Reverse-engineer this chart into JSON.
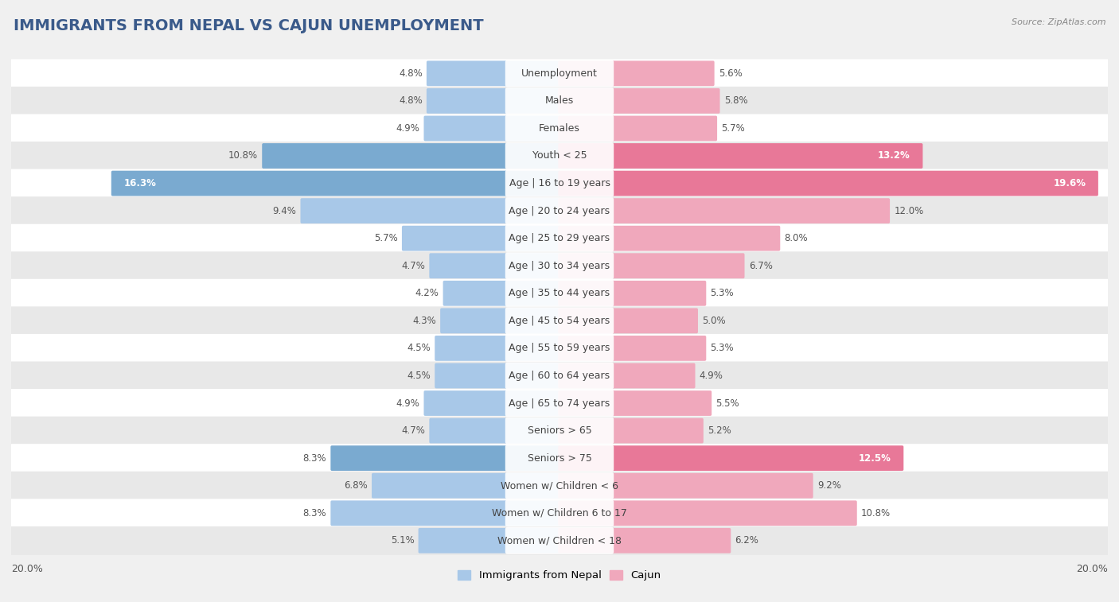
{
  "title": "IMMIGRANTS FROM NEPAL VS CAJUN UNEMPLOYMENT",
  "source": "Source: ZipAtlas.com",
  "categories": [
    "Unemployment",
    "Males",
    "Females",
    "Youth < 25",
    "Age | 16 to 19 years",
    "Age | 20 to 24 years",
    "Age | 25 to 29 years",
    "Age | 30 to 34 years",
    "Age | 35 to 44 years",
    "Age | 45 to 54 years",
    "Age | 55 to 59 years",
    "Age | 60 to 64 years",
    "Age | 65 to 74 years",
    "Seniors > 65",
    "Seniors > 75",
    "Women w/ Children < 6",
    "Women w/ Children 6 to 17",
    "Women w/ Children < 18"
  ],
  "nepal_values": [
    4.8,
    4.8,
    4.9,
    10.8,
    16.3,
    9.4,
    5.7,
    4.7,
    4.2,
    4.3,
    4.5,
    4.5,
    4.9,
    4.7,
    8.3,
    6.8,
    8.3,
    5.1
  ],
  "cajun_values": [
    5.6,
    5.8,
    5.7,
    13.2,
    19.6,
    12.0,
    8.0,
    6.7,
    5.3,
    5.0,
    5.3,
    4.9,
    5.5,
    5.2,
    12.5,
    9.2,
    10.8,
    6.2
  ],
  "nepal_color": "#a8c8e8",
  "cajun_color": "#f0a8bc",
  "nepal_highlight_color": "#7aaad0",
  "cajun_highlight_color": "#e87898",
  "row_color_light": "#ffffff",
  "row_color_dark": "#e8e8e8",
  "bg_color": "#f0f0f0",
  "xlim": 20.0,
  "legend_nepal": "Immigrants from Nepal",
  "legend_cajun": "Cajun",
  "title_fontsize": 14,
  "label_fontsize": 9,
  "value_fontsize": 8.5,
  "source_fontsize": 8,
  "highlight_rows": [
    3,
    4,
    14
  ],
  "white_label_nepal": [
    4
  ],
  "white_label_cajun": [
    4,
    3,
    14
  ]
}
